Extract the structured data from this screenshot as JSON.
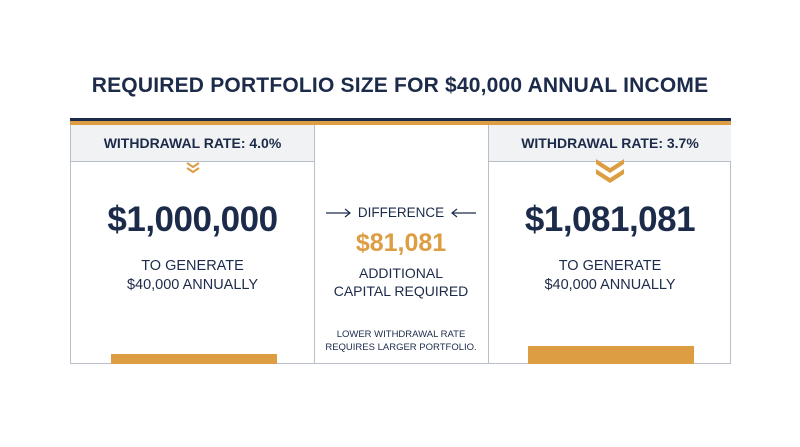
{
  "title": "REQUIRED PORTFOLIO SIZE FOR $40,000 ANNUAL INCOME",
  "left": {
    "rate_label": "WITHDRAWAL RATE: 4.0%",
    "amount": "$1,000,000",
    "caption_line1": "TO GENERATE",
    "caption_line2": "$40,000 ANNUALLY"
  },
  "middle": {
    "label": "DIFFERENCE",
    "amount": "$81,081",
    "caption_line1": "ADDITIONAL",
    "caption_line2": "CAPITAL REQUIRED",
    "note_line1": "LOWER WITHDRAWAL RATE",
    "note_line2": "REQUIRES LARGER PORTFOLIO."
  },
  "right": {
    "rate_label": "WITHDRAWAL RATE: 3.7%",
    "amount": "$1,081,081",
    "caption_line1": "TO GENERATE",
    "caption_line2": "$40,000 ANNUALLY"
  },
  "colors": {
    "navy": "#1c2b4a",
    "gold": "#dd9d43",
    "border": "#b9bfca",
    "header_bg": "#f1f2f4"
  },
  "icons": {
    "left_chevron": "double-chevron-down-icon",
    "right_chevron": "double-chevron-down-icon",
    "arrow_left_side": "arrow-right-icon",
    "arrow_right_side": "arrow-left-icon"
  }
}
